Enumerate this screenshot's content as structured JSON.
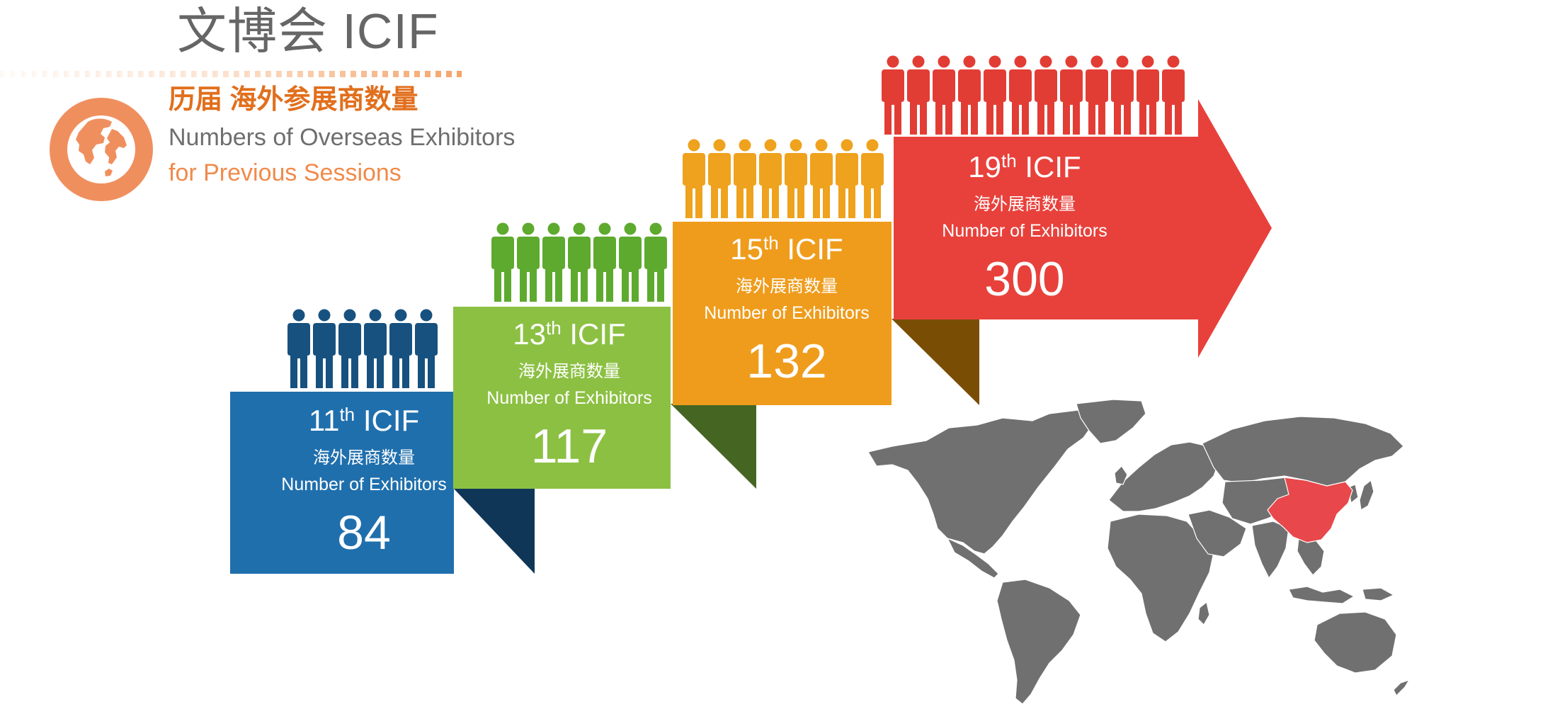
{
  "header": {
    "title": "文博会 ICIF",
    "subtitle_cn": "历届 海外参展商数量",
    "subtitle_en_line1": "Numbers of Overseas Exhibitors",
    "subtitle_en_line2": "for Previous Sessions",
    "icon": "globe-icon"
  },
  "sessions": [
    {
      "ordinal": "11",
      "suffix": "th",
      "name": "ICIF",
      "label_cn": "海外展商数量",
      "label_en": "Number of Exhibitors",
      "count": "84",
      "people_icons": 6,
      "color": "#1f6fad",
      "people_color": "#17517f"
    },
    {
      "ordinal": "13",
      "suffix": "th",
      "name": "ICIF",
      "label_cn": "海外展商数量",
      "label_en": "Number of Exhibitors",
      "count": "117",
      "people_icons": 7,
      "color": "#8cc043",
      "people_color": "#5eaa2f"
    },
    {
      "ordinal": "15",
      "suffix": "th",
      "name": "ICIF",
      "label_cn": "海外展商数量",
      "label_en": "Number of Exhibitors",
      "count": "132",
      "people_icons": 8,
      "color": "#ef9c1c",
      "people_color": "#efa21d"
    },
    {
      "ordinal": "19",
      "suffix": "th",
      "name": "ICIF",
      "label_cn": "海外展商数量",
      "label_en": "Number of Exhibitors",
      "count": "300",
      "people_icons": 12,
      "color": "#e8413b",
      "people_color": "#e23d35"
    }
  ],
  "map": {
    "icon": "world-map",
    "highlight": "China",
    "land_color": "#707070",
    "highlight_color": "#e8474b"
  }
}
